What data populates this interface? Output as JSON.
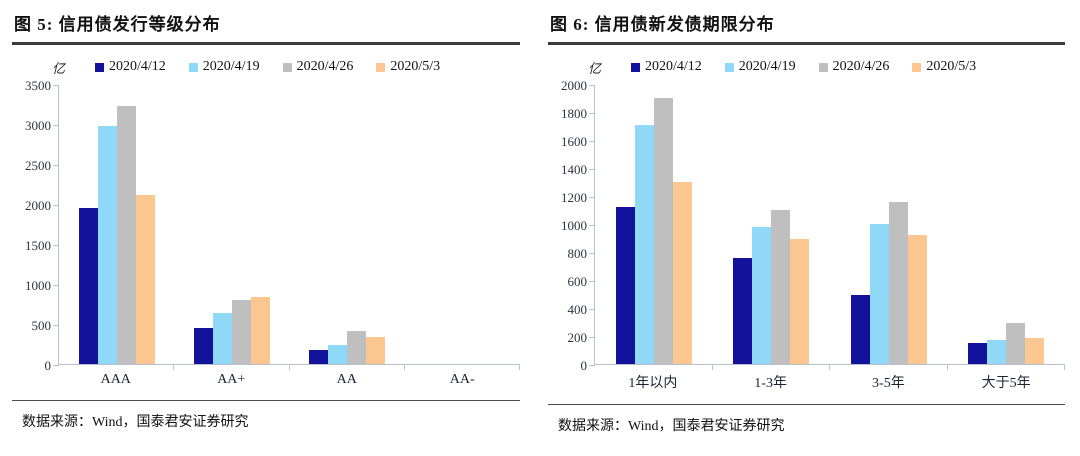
{
  "figures": [
    {
      "source": "数据来源：Wind，国泰君安证券研究"
    },
    {
      "source": "数据来源：Wind，国泰君安证券研究"
    }
  ],
  "colors": {
    "series": [
      "#12129B",
      "#8FD8F8",
      "#BFBFBF",
      "#FBC690"
    ],
    "axis": "#b9c3cd",
    "tick_label": "#2e3440",
    "title_rule": "#3b3b3b"
  },
  "chart_data": [
    {
      "type": "bar",
      "title": "图 5: 信用债发行等级分布",
      "categories": [
        "AAA",
        "AA+",
        "AA",
        "AA-"
      ],
      "series": [
        {
          "name": "2020/4/12",
          "values": [
            1950,
            450,
            180,
            0
          ]
        },
        {
          "name": "2020/4/19",
          "values": [
            2980,
            640,
            240,
            0
          ]
        },
        {
          "name": "2020/4/26",
          "values": [
            3230,
            800,
            410,
            0
          ]
        },
        {
          "name": "2020/5/3",
          "values": [
            2110,
            840,
            340,
            0
          ]
        }
      ],
      "ylabel": "亿",
      "ylim": [
        0,
        3500
      ],
      "ytick_step": 500,
      "grid": false,
      "legend_position": "top"
    },
    {
      "type": "bar",
      "title": "图 6: 信用债新发债期限分布",
      "categories": [
        "1年以内",
        "1-3年",
        "3-5年",
        "大于5年"
      ],
      "series": [
        {
          "name": "2020/4/12",
          "values": [
            1120,
            760,
            490,
            150
          ]
        },
        {
          "name": "2020/4/19",
          "values": [
            1710,
            980,
            1000,
            175
          ]
        },
        {
          "name": "2020/4/26",
          "values": [
            1900,
            1100,
            1160,
            290
          ]
        },
        {
          "name": "2020/5/3",
          "values": [
            1300,
            890,
            920,
            185
          ]
        }
      ],
      "ylabel": "亿",
      "ylim": [
        0,
        2000
      ],
      "ytick_step": 200,
      "grid": false,
      "legend_position": "top"
    }
  ]
}
